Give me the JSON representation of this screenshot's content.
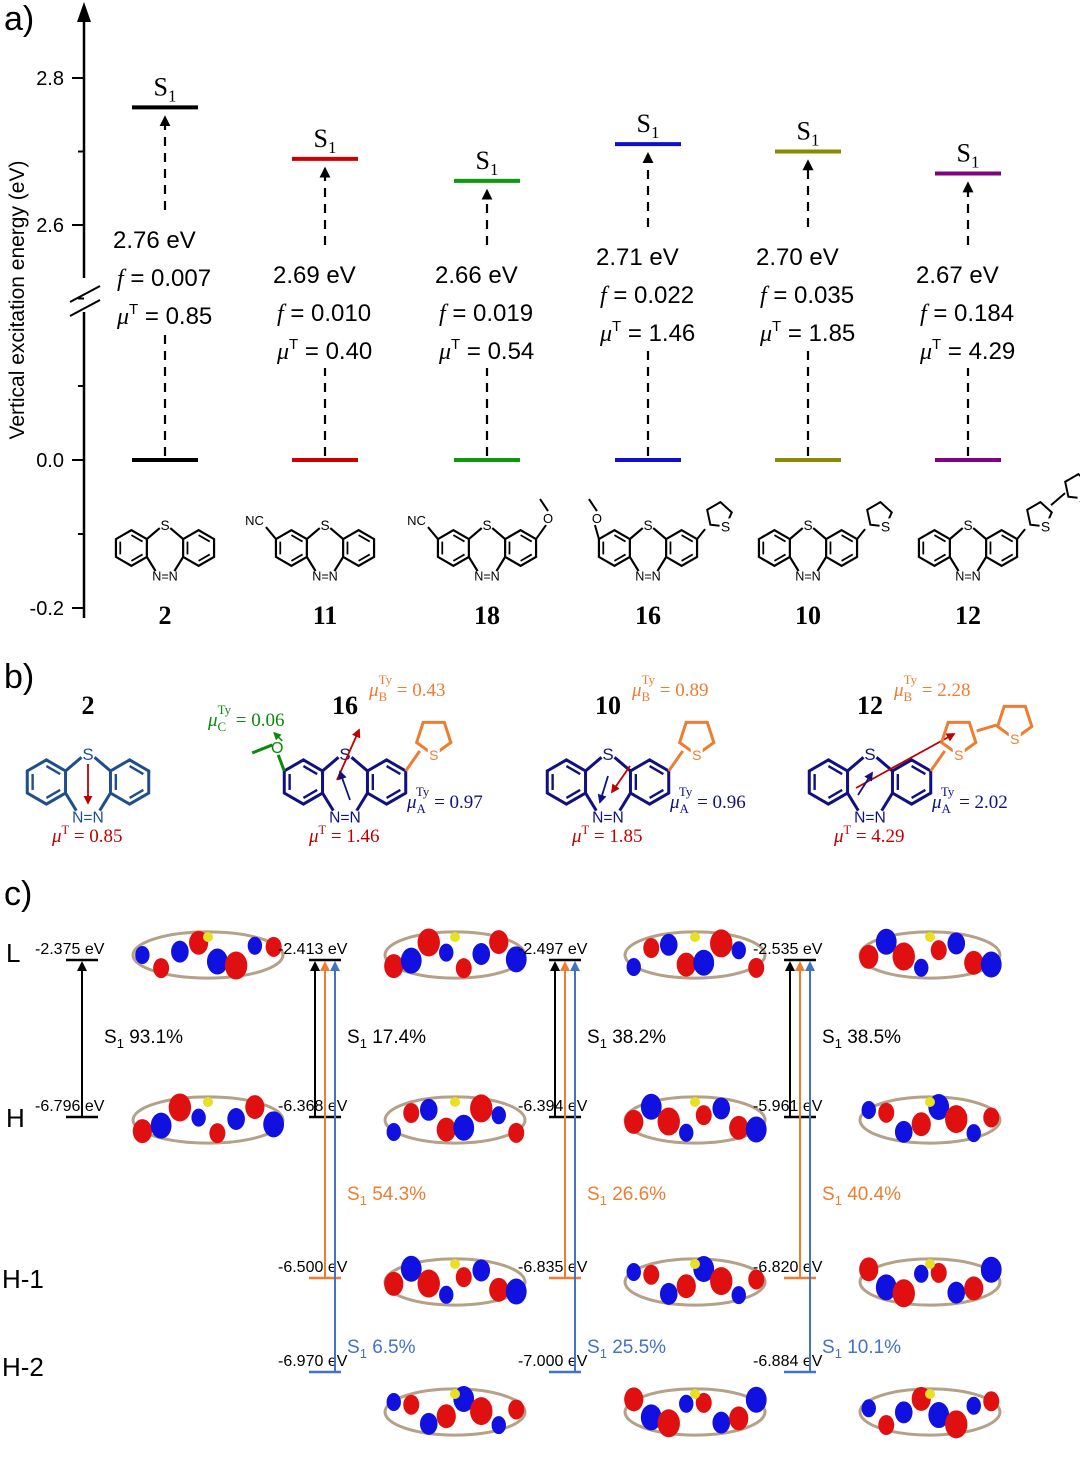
{
  "panels": {
    "a": {
      "label": "a)"
    },
    "b": {
      "label": "b)"
    },
    "c": {
      "label": "c)"
    }
  },
  "chart_data": {
    "type": "energy-level",
    "ylabel": "Vertical excitation energy (eV)",
    "yticks": [
      "2.8",
      "2.6",
      "0.0",
      "-0.2"
    ],
    "axis_break": true,
    "compounds": [
      {
        "id": "2",
        "state": "S",
        "state_sub": "1",
        "energy_label": "2.76 eV",
        "f": "= 0.007",
        "mu": "= 0.85",
        "color": "#000000",
        "energy": 2.76
      },
      {
        "id": "11",
        "state": "S",
        "state_sub": "1",
        "energy_label": "2.69 eV",
        "f": "= 0.010",
        "mu": "= 0.40",
        "color": "#cc0000",
        "energy": 2.69
      },
      {
        "id": "18",
        "state": "S",
        "state_sub": "1",
        "energy_label": "2.66 eV",
        "f": "= 0.019",
        "mu": "= 0.54",
        "color": "#0a9a0a",
        "energy": 2.66
      },
      {
        "id": "16",
        "state": "S",
        "state_sub": "1",
        "energy_label": "2.71 eV",
        "f": "= 0.022",
        "mu": "= 1.46",
        "color": "#1010cc",
        "energy": 2.71
      },
      {
        "id": "10",
        "state": "S",
        "state_sub": "1",
        "energy_label": "2.70 eV",
        "f": "= 0.035",
        "mu": "= 1.85",
        "color": "#8a8a00",
        "energy": 2.7
      },
      {
        "id": "12",
        "state": "S",
        "state_sub": "1",
        "energy_label": "2.67 eV",
        "f": "= 0.184",
        "mu": "= 4.29",
        "color": "#800080",
        "energy": 2.67
      }
    ]
  },
  "panel_b": {
    "molecules": [
      {
        "id": "2",
        "muT": "= 0.85"
      },
      {
        "id": "16",
        "muT": "= 1.46",
        "muA": "= 0.97",
        "muB": "= 0.43",
        "muC": "= 0.06"
      },
      {
        "id": "10",
        "muT": "= 1.85",
        "muA": "= 0.96",
        "muB": "= 0.89"
      },
      {
        "id": "12",
        "muT": "= 4.29",
        "muA": "= 2.02",
        "muB": "= 2.28"
      }
    ]
  },
  "panel_c": {
    "row_labels": [
      "L",
      "H",
      "H-1",
      "H-2"
    ],
    "columns": [
      {
        "L": "-2.375 eV",
        "H": "-6.796 eV",
        "H1": "",
        "H2": "",
        "t_black": "93.1%",
        "t_orange": "",
        "t_blue": ""
      },
      {
        "L": "-2.413 eV",
        "H": "-6.368 eV",
        "H1": "-6.500 eV",
        "H2": "-6.970 eV",
        "t_black": "17.4%",
        "t_orange": "54.3%",
        "t_blue": "6.5%"
      },
      {
        "L": "-2.497 eV",
        "H": "-6.394 eV",
        "H1": "-6.835 eV",
        "H2": "-7.000 eV",
        "t_black": "38.2%",
        "t_orange": "26.6%",
        "t_blue": "25.5%"
      },
      {
        "L": "-2.535 eV",
        "H": "-5.961 eV",
        "H1": "-6.820 eV",
        "H2": "-6.884 eV",
        "t_black": "38.5%",
        "t_orange": "40.4%",
        "t_blue": "10.1%"
      }
    ],
    "colors": {
      "black": "#000000",
      "orange": "#ed7d31",
      "blue": "#4472c4"
    }
  }
}
